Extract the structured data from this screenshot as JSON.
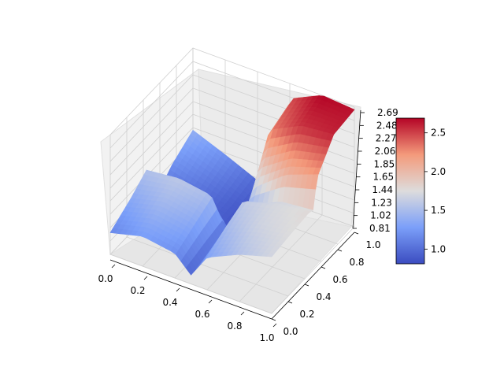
{
  "chart_data": {
    "type": "surface3d",
    "colormap": "coolwarm",
    "x_ticks": [
      "0.0",
      "0.2",
      "0.4",
      "0.6",
      "0.8",
      "1.0"
    ],
    "y_ticks": [
      "0.0",
      "0.2",
      "0.4",
      "0.6",
      "0.8",
      "1.0"
    ],
    "z_ticks": [
      "0.81",
      "1.02",
      "1.23",
      "1.44",
      "1.65",
      "1.85",
      "2.06",
      "2.27",
      "2.48",
      "2.69"
    ],
    "xlim": [
      0,
      1
    ],
    "ylim": [
      0,
      1
    ],
    "zlim": [
      0.81,
      2.69
    ],
    "colorbar": {
      "ticks": [
        "1.0",
        "1.5",
        "2.0",
        "2.5"
      ],
      "range": [
        0.81,
        2.69
      ]
    },
    "grid": true,
    "surface_description_values": {
      "x": [
        0.0,
        0.2,
        0.4,
        0.5,
        0.6,
        0.8,
        1.0
      ],
      "y": [
        0.0,
        0.25,
        0.45,
        0.5,
        0.55,
        0.75,
        1.0
      ],
      "z": [
        [
          1.15,
          1.28,
          1.2,
          0.95,
          1.32,
          1.55,
          1.7
        ],
        [
          1.35,
          1.48,
          1.38,
          1.0,
          1.5,
          1.68,
          1.75
        ],
        [
          1.55,
          1.6,
          1.52,
          1.02,
          1.62,
          1.72,
          1.78
        ],
        [
          1.0,
          1.05,
          1.0,
          0.95,
          1.45,
          1.7,
          1.75
        ],
        [
          0.95,
          0.92,
          0.9,
          0.85,
          1.6,
          2.0,
          2.2
        ],
        [
          1.2,
          1.05,
          0.9,
          0.82,
          2.3,
          2.55,
          2.6
        ],
        [
          1.4,
          1.2,
          0.98,
          0.85,
          2.45,
          2.69,
          2.65
        ]
      ]
    }
  }
}
